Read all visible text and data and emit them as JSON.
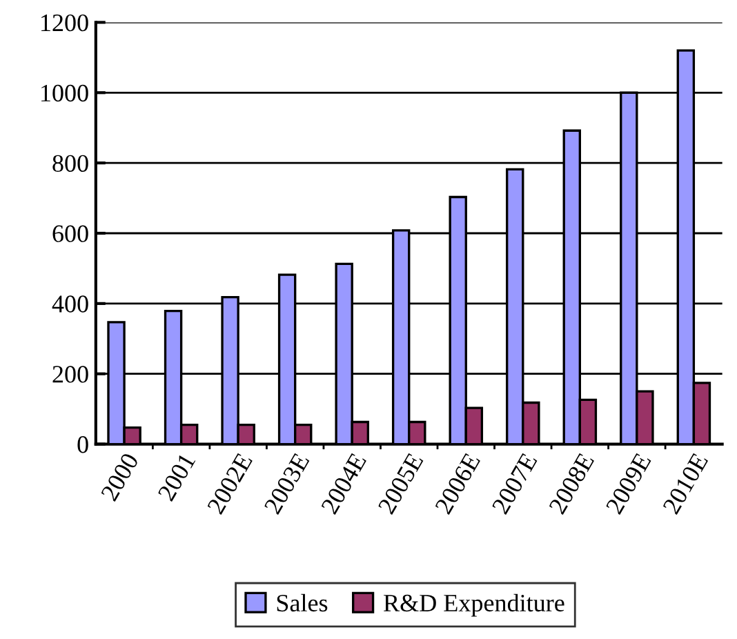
{
  "chart_data": {
    "type": "bar",
    "categories": [
      "2000",
      "2001",
      "2002E",
      "2003E",
      "2004E",
      "2005E",
      "2006E",
      "2007E",
      "2008E",
      "2009E",
      "2010E"
    ],
    "series": [
      {
        "name": "Sales",
        "color": "#9999ff",
        "values": [
          347,
          379,
          418,
          482,
          513,
          608,
          703,
          782,
          892,
          1000,
          1120
        ]
      },
      {
        "name": "R&D Expenditure",
        "color": "#993366",
        "values": [
          47,
          55,
          55,
          55,
          63,
          63,
          103,
          118,
          126,
          150,
          174
        ]
      }
    ],
    "ylim": [
      0,
      1200
    ],
    "yticks": [
      0,
      200,
      400,
      600,
      800,
      1000,
      1200
    ],
    "grid": "y",
    "legend": "bottom"
  }
}
